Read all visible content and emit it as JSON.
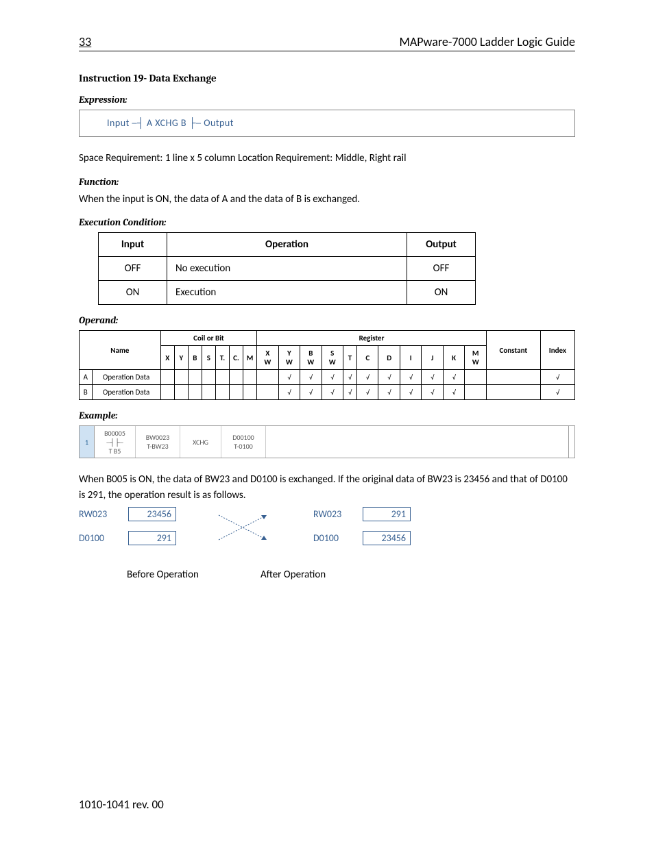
{
  "header": {
    "page_number": "33",
    "doc_title": "MAPware-7000 Ladder Logic Guide"
  },
  "instruction_title": "Instruction 19- Data Exchange",
  "expression": {
    "heading": "Expression:",
    "content": "Input   ─┤ A   XCHG    B ├─  Output"
  },
  "space_req": "Space Requirement: 1 line x 5 column     Location Requirement: Middle, Right rail",
  "function": {
    "heading": "Function:",
    "text": "When the input is ON, the data of A and the data of B is exchanged."
  },
  "exec_cond": {
    "heading": "Execution Condition:",
    "headers": [
      "Input",
      "Operation",
      "Output"
    ],
    "rows": [
      [
        "OFF",
        "No execution",
        "OFF"
      ],
      [
        "ON",
        "Execution",
        "ON"
      ]
    ]
  },
  "operand": {
    "heading": "Operand:",
    "group_headers": {
      "name": "Name",
      "coil": "Coil or Bit",
      "register": "Register",
      "constant": "Constant",
      "index": "Index"
    },
    "coil_cols": [
      "X",
      "Y",
      "B",
      "S",
      "T.",
      "C.",
      "M"
    ],
    "reg_cols": [
      "X\nW",
      "Y\nW",
      "B\nW",
      "S\nW",
      "T",
      "C",
      "D",
      "I",
      "J",
      "K",
      "M\nW"
    ],
    "rows": [
      {
        "letter": "A",
        "name": "Operation Data",
        "coil": [
          "",
          "",
          "",
          "",
          "",
          "",
          ""
        ],
        "reg": [
          "",
          "√",
          "√",
          "√",
          "√",
          "√",
          "√",
          "√",
          "√",
          "√",
          ""
        ],
        "constant": "",
        "index": "√"
      },
      {
        "letter": "B",
        "name": "Operation Data",
        "coil": [
          "",
          "",
          "",
          "",
          "",
          "",
          ""
        ],
        "reg": [
          "",
          "√",
          "√",
          "√",
          "√",
          "√",
          "√",
          "√",
          "√",
          "√",
          ""
        ],
        "constant": "",
        "index": "√"
      }
    ]
  },
  "example": {
    "heading": "Example:",
    "ladder": {
      "rung": "1",
      "contact_top": "B00005",
      "contact_line": "─┤├─",
      "contact_sub": "T B5",
      "a_top": "BW0023",
      "a_sub": "T-BW23",
      "instr": "XCHG",
      "b_top": "D00100",
      "b_sub": "T-0100"
    },
    "text": "When B005 is ON, the data of BW23 and D0100 is exchanged. If the original data of BW23 is 23456 and that of D0100 is 291, the operation result is as follows.",
    "before": {
      "r1_label": "RW023",
      "r1_val": "23456",
      "r2_label": "D0100",
      "r2_val": "291"
    },
    "after": {
      "r1_label": "RW023",
      "r1_val": "291",
      "r2_label": "D0100",
      "r2_val": "23456"
    },
    "before_caption": "Before Operation",
    "after_caption": "After Operation"
  },
  "footer": "1010-1041 rev. 00",
  "colors": {
    "accent": "#365f91",
    "text": "#000000",
    "border_gray": "#808080"
  }
}
